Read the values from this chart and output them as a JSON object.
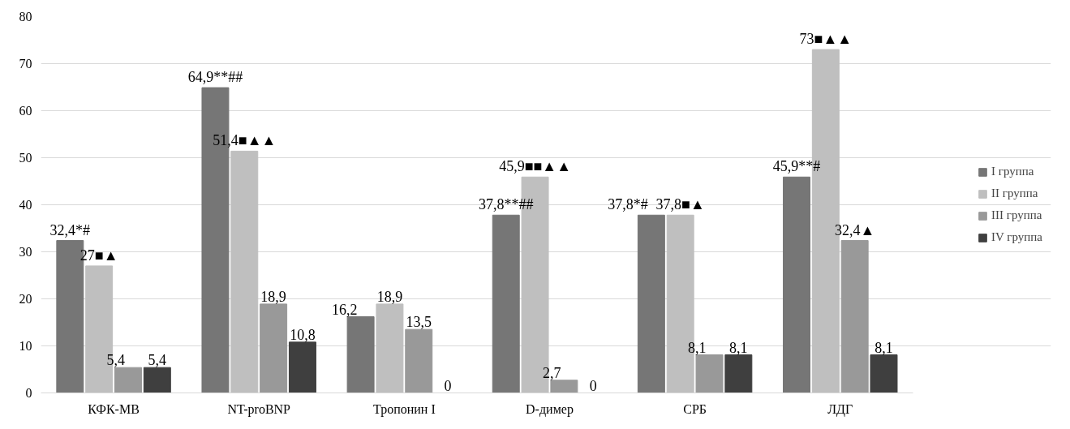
{
  "chart_data": {
    "type": "bar",
    "categories": [
      "КФК-МВ",
      "NT-proBNP",
      "Тропонин I",
      "D-димер",
      "СРБ",
      "ЛДГ"
    ],
    "series": [
      {
        "name": "I группа",
        "color": "#767676",
        "values": [
          32.4,
          64.9,
          16.2,
          37.8,
          37.8,
          45.9
        ],
        "value_labels": [
          "32,4*#",
          "64,9**##",
          "16,2",
          "37,8**##",
          "37,8*#",
          "45,9**#"
        ]
      },
      {
        "name": "II группа",
        "color": "#bfbfbf",
        "values": [
          27,
          51.4,
          18.9,
          45.9,
          37.8,
          73
        ],
        "value_labels": [
          "27■▲",
          "51,4■▲▲",
          "18,9",
          "45,9■■▲▲",
          "37,8■▲",
          "73■▲▲"
        ]
      },
      {
        "name": "III группа",
        "color": "#999999",
        "values": [
          5.4,
          18.9,
          13.5,
          2.7,
          8.1,
          32.4
        ],
        "value_labels": [
          "5,4",
          "18,9",
          "13,5",
          "2,7",
          "8,1",
          "32,4▲"
        ]
      },
      {
        "name": "IV группа",
        "color": "#3f3f3f",
        "values": [
          5.4,
          10.8,
          0,
          0,
          8.1,
          8.1
        ],
        "value_labels": [
          "5,4",
          "10,8",
          "0",
          "0",
          "8,1",
          "8,1"
        ]
      }
    ],
    "ylim": [
      0,
      80
    ],
    "yticks": [
      0,
      10,
      20,
      30,
      40,
      50,
      60,
      70,
      80
    ],
    "grid": "y",
    "legend": "right"
  }
}
